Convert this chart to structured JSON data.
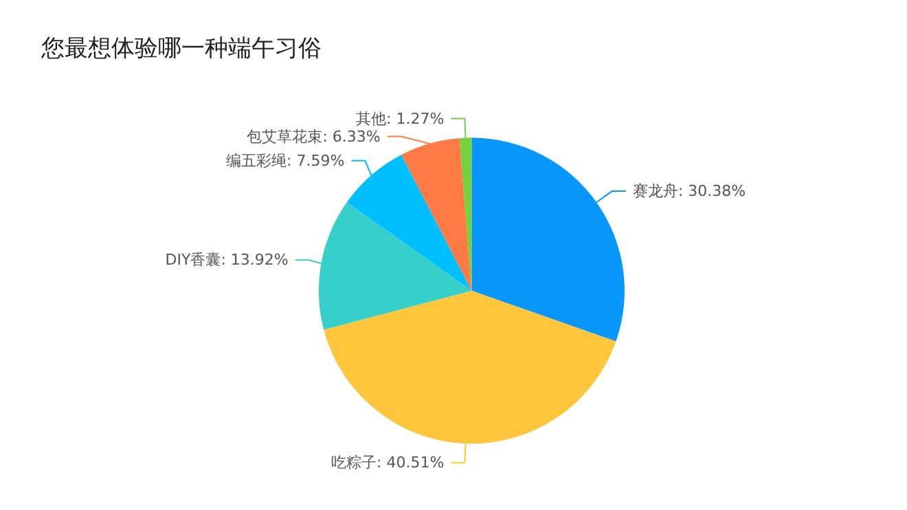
{
  "chart_data": {
    "type": "pie",
    "title": "您最想体验哪一种端午习俗",
    "categories": [
      "赛龙舟",
      "吃粽子",
      "DIY香囊",
      "编五彩绳",
      "包艾草花束",
      "其他"
    ],
    "values": [
      30.38,
      40.51,
      13.92,
      7.59,
      6.33,
      1.27
    ],
    "colors": [
      "#0a97fb",
      "#ffc53d",
      "#36cfc9",
      "#00bfff",
      "#ff7a45",
      "#73d13d"
    ],
    "value_labels": [
      "30.38%",
      "40.51%",
      "13.92%",
      "7.59%",
      "6.33%",
      "1.27%"
    ],
    "legend": false
  }
}
